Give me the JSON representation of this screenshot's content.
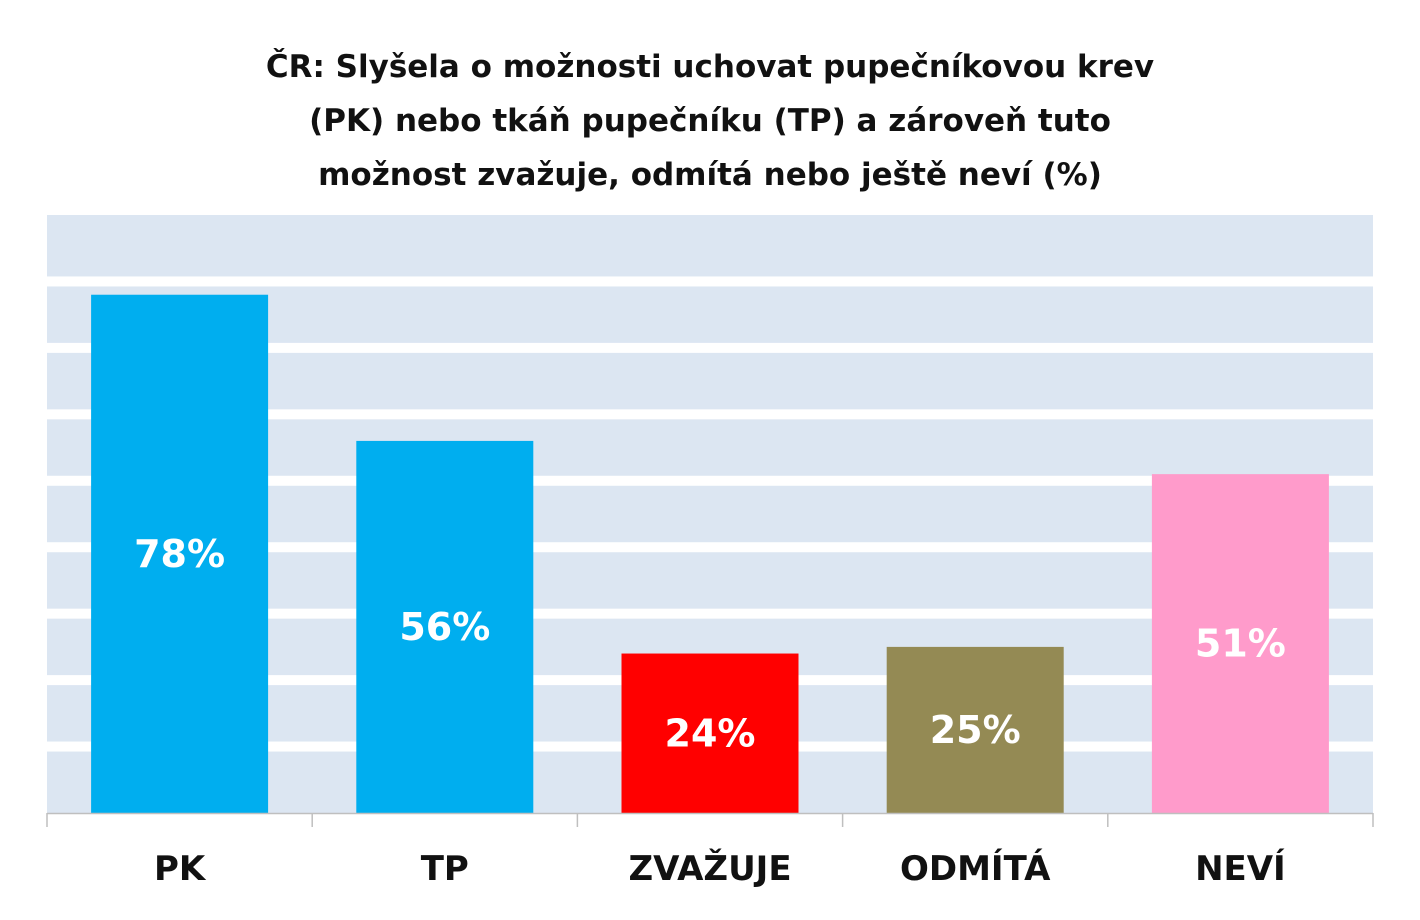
{
  "chart_data": {
    "type": "bar",
    "title_lines": [
      "ČR: Slyšela o možnosti uchovat pupečníkovou krev",
      "(PK) nebo tkáň pupečníku (TP) a zároveň tuto",
      "možnost zvažuje, odmítá nebo ještě neví (%)"
    ],
    "categories": [
      "PK",
      "TP",
      "ZVAŽUJE",
      "ODMÍTÁ",
      "NEVÍ"
    ],
    "values": [
      78,
      56,
      24,
      25,
      51
    ],
    "value_labels": [
      "78%",
      "56%",
      "24%",
      "25%",
      "51%"
    ],
    "colors": [
      "#00AEEF",
      "#00AEEF",
      "#FF0000",
      "#948A54",
      "#FF9BCB"
    ],
    "ylim": [
      0,
      90
    ],
    "ytick_step": 10,
    "grid": true,
    "plot_background": "#DCE6F2",
    "grid_color": "#FFFFFF",
    "xlabel": "",
    "ylabel": ""
  }
}
